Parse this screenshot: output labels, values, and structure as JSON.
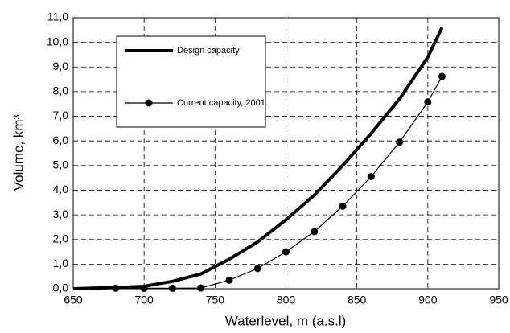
{
  "chart_data": {
    "type": "line",
    "xlabel": "Waterlevel, m (a.s.l)",
    "ylabel": "Volume, km³",
    "xlim": [
      650,
      950
    ],
    "xticks": [
      650,
      700,
      750,
      800,
      850,
      900,
      950
    ],
    "ylim": [
      0,
      11
    ],
    "yticks": [
      {
        "value": 0,
        "label": "0,0"
      },
      {
        "value": 1,
        "label": "1,0"
      },
      {
        "value": 2,
        "label": "2,0"
      },
      {
        "value": 3,
        "label": "3,0"
      },
      {
        "value": 4,
        "label": "4,0"
      },
      {
        "value": 5,
        "label": "5,0"
      },
      {
        "value": 6,
        "label": "6,0"
      },
      {
        "value": 7,
        "label": "7,0"
      },
      {
        "value": 8,
        "label": "8,0"
      },
      {
        "value": 9,
        "label": "9,0"
      },
      {
        "value": 10,
        "label": "10,0"
      },
      {
        "value": 11,
        "label": "11,0"
      }
    ],
    "grid": true,
    "series": [
      {
        "name": "Design capacity",
        "color": "#000000",
        "markers": false,
        "x": [
          650,
          680,
          700,
          720,
          740,
          750,
          760,
          780,
          800,
          820,
          840,
          860,
          880,
          900,
          910
        ],
        "values": [
          0,
          0.05,
          0.1,
          0.3,
          0.6,
          0.9,
          1.2,
          1.9,
          2.8,
          3.8,
          5.0,
          6.3,
          7.7,
          9.4,
          10.6
        ]
      },
      {
        "name": "Current capacity, 2001",
        "color": "#000000",
        "markers": true,
        "x": [
          680,
          700,
          720,
          740,
          760,
          780,
          800,
          820,
          840,
          860,
          880,
          900,
          910
        ],
        "values": [
          0.02,
          0.02,
          0.02,
          0.03,
          0.35,
          0.82,
          1.5,
          2.32,
          3.35,
          4.55,
          5.95,
          7.58,
          8.62
        ]
      }
    ]
  }
}
